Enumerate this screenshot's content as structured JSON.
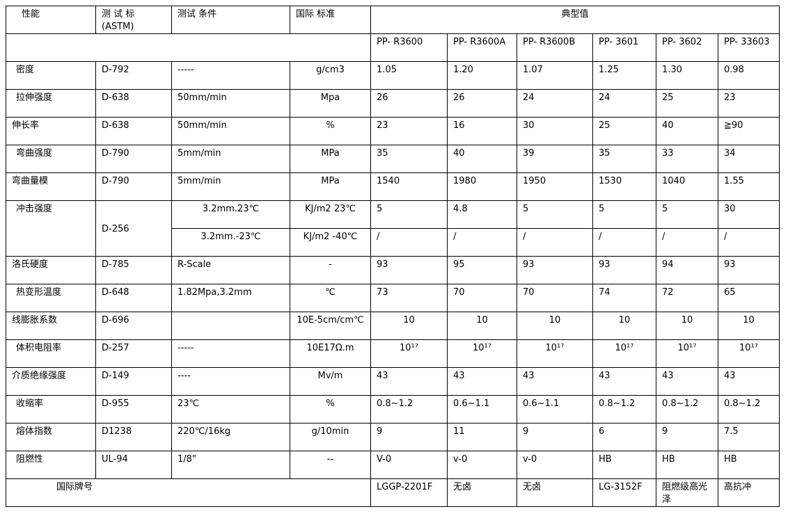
{
  "header": {
    "property": "性能",
    "astm": "测 试 标 (ASTM)",
    "condition": "测试 条件",
    "standard": "国际 标准",
    "typical": "典型值"
  },
  "models": [
    "PP- R3600",
    "PP- R3600A",
    "PP- R3600B",
    "PP- 3601",
    "PP- 3602",
    "PP- 33603"
  ],
  "rows": [
    {
      "property": "密度",
      "astm": "D-792",
      "condition": "-----",
      "unit": "g/cm3",
      "values": [
        "1.05",
        "1.20",
        "1.07",
        "1.25",
        "1.30",
        "0.98"
      ]
    },
    {
      "property": "拉伸强度",
      "astm": "D-638",
      "condition": "50mm/min",
      "unit": "Mpa",
      "values": [
        "26",
        "26",
        "24",
        "24",
        "25",
        "23"
      ]
    },
    {
      "property": "伸长率",
      "astm": "D-638",
      "condition": "50mm/min",
      "unit": "%",
      "values": [
        "23",
        "16",
        "30",
        "25",
        "40",
        "≧90"
      ]
    },
    {
      "property": "弯曲强度",
      "astm": "D-790",
      "condition": "5mm/min",
      "unit": "MPa",
      "values": [
        "35",
        "40",
        "39",
        "35",
        "33",
        "34"
      ]
    },
    {
      "property": "弯曲量模",
      "astm": "D-790",
      "condition": "5mm/min",
      "unit": "MPa",
      "values": [
        "1540",
        "1980",
        "1950",
        "1530",
        "1040",
        "1.55"
      ]
    },
    {
      "property": "冲击强度",
      "astm": "D-256",
      "condition": "3.2mm.23℃",
      "unit": "KJ/m2 23℃",
      "values": [
        "5",
        "4.8",
        "5",
        "5",
        "5",
        "30"
      ],
      "sub": {
        "condition": "3.2mm.-23℃",
        "unit": "KJ/m2 -40℃",
        "values": [
          "/",
          "/",
          "/",
          "/",
          "/",
          "/"
        ]
      }
    },
    {
      "property": "洛氏硬度",
      "astm": "D-785",
      "condition": "R-Scale",
      "unit": "-",
      "values": [
        "93",
        "95",
        "93",
        "93",
        "94",
        "93"
      ]
    },
    {
      "property": "热变形温度",
      "astm": "D-648",
      "condition": "1.82Mpa,3.2mm",
      "unit": "℃",
      "values": [
        "73",
        "70",
        "70",
        "74",
        "72",
        "65"
      ]
    },
    {
      "property": "线膨胀系数",
      "astm": "D-696",
      "condition": "",
      "unit": "10E-5cm/cm℃",
      "values": [
        "10",
        "10",
        "10",
        "10",
        "10",
        "10"
      ]
    },
    {
      "property": "体积电阻率",
      "astm": "D-257",
      "condition": "-----",
      "unit": "10E17Ω.m",
      "values": [
        "10¹⁷",
        "10¹⁷",
        "10¹⁷",
        "10¹⁷",
        "10¹⁷",
        "10¹⁷"
      ]
    },
    {
      "property": "介质绝缘强度",
      "astm": "D-149",
      "condition": "----",
      "unit": "Mv/m",
      "values": [
        "43",
        "43",
        "43",
        "43",
        "43",
        "43"
      ]
    },
    {
      "property": "收缩率",
      "astm": "D-955",
      "condition": "23℃",
      "unit": "%",
      "values": [
        "0.8~1.2",
        "0.6~1.1",
        "0.6~1.1",
        "0.8~1.2",
        "0.8~1.2",
        "0.8~1.2"
      ]
    },
    {
      "property": "熔体指数",
      "astm": "D1238",
      "condition": "220℃/16kg",
      "unit": "g/10min",
      "values": [
        "9",
        "11",
        "9",
        "6",
        "9",
        "7.5"
      ]
    },
    {
      "property": "阻燃性",
      "astm": "UL-94",
      "condition": "1/8\"",
      "unit": "--",
      "values": [
        "V-0",
        "v-0",
        "v-0",
        "HB",
        "HB",
        "HB"
      ]
    }
  ],
  "brand_row": {
    "label": "国际牌号",
    "values": [
      "LGGP-2201F",
      "无卤",
      "无卤",
      "LG-3152F",
      "阻燃级高光泽",
      "高抗冲"
    ]
  }
}
